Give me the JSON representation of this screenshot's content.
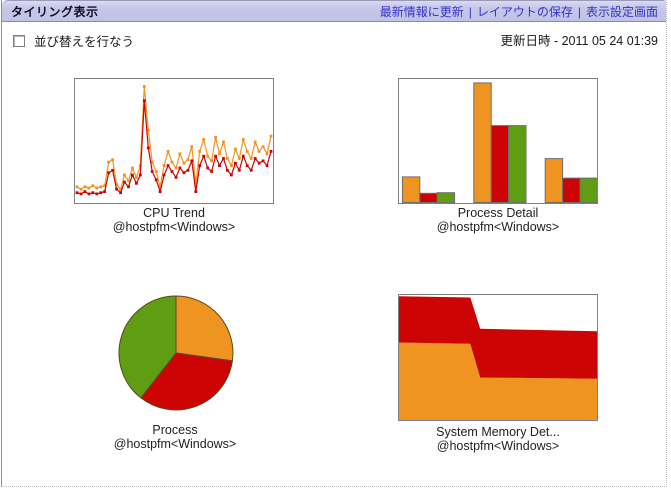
{
  "header": {
    "title": "タイリング表示",
    "links": [
      {
        "label": "最新情報に更新"
      },
      {
        "label": "レイアウトの保存"
      },
      {
        "label": "表示設定画面"
      }
    ],
    "link_separator": "|",
    "link_color": "#3333cc",
    "titlebar_bg": "#c6c6e8"
  },
  "controls": {
    "sort_checkbox_label": "並び替えを行なう",
    "sort_checkbox_checked": false,
    "update_time_text": "更新日時 - 2011 05 24 01:39"
  },
  "colors": {
    "orange": "#ef9421",
    "red": "#cc0404",
    "green": "#5f9d13",
    "chart_border": "#808080"
  },
  "chart_data": [
    {
      "id": "cpu-trend",
      "type": "line",
      "title": "CPU Trend",
      "subtitle": "@hostpfm<Windows>",
      "ylim": [
        0,
        100
      ],
      "grid": false,
      "legend": "none",
      "series": [
        {
          "name": "series-orange",
          "color": "#ef9421",
          "values": [
            12,
            10,
            12,
            11,
            13,
            11,
            12,
            13,
            33,
            35,
            14,
            10,
            22,
            17,
            28,
            20,
            30,
            97,
            60,
            33,
            25,
            12,
            30,
            42,
            33,
            28,
            40,
            32,
            35,
            46,
            14,
            42,
            52,
            38,
            34,
            54,
            40,
            50,
            36,
            30,
            44,
            36,
            52,
            42,
            36,
            50,
            42,
            46,
            40,
            55
          ]
        },
        {
          "name": "series-red",
          "color": "#cc0404",
          "values": [
            7,
            6,
            8,
            6,
            7,
            6,
            7,
            8,
            24,
            26,
            10,
            7,
            16,
            12,
            22,
            15,
            22,
            85,
            45,
            25,
            18,
            8,
            22,
            30,
            25,
            20,
            28,
            24,
            26,
            34,
            8,
            30,
            38,
            28,
            25,
            38,
            30,
            36,
            26,
            22,
            32,
            26,
            38,
            30,
            26,
            36,
            32,
            34,
            30,
            42
          ]
        }
      ]
    },
    {
      "id": "process-detail",
      "type": "bar",
      "title": "Process Detail",
      "subtitle": "@hostpfm<Windows>",
      "categories": [
        "group-1",
        "group-2",
        "group-3"
      ],
      "ylim": [
        0,
        100
      ],
      "grid": false,
      "legend": "none",
      "series": [
        {
          "name": "series-orange",
          "color": "#ef9421",
          "values": [
            21,
            98,
            36
          ]
        },
        {
          "name": "series-red",
          "color": "#cc0404",
          "values": [
            7.5,
            63,
            20
          ]
        },
        {
          "name": "series-green",
          "color": "#5f9d13",
          "values": [
            8,
            63,
            20
          ]
        }
      ]
    },
    {
      "id": "process",
      "type": "pie",
      "title": "Process",
      "subtitle": "@hostpfm<Windows>",
      "start_angle_deg": 0,
      "slices": [
        {
          "name": "slice-orange",
          "color": "#ef9421",
          "angle_deg": 98
        },
        {
          "name": "slice-red",
          "color": "#cc0404",
          "angle_deg": 120
        },
        {
          "name": "slice-green",
          "color": "#5f9d13",
          "angle_deg": 142
        }
      ]
    },
    {
      "id": "system-memory",
      "type": "area",
      "title": "System Memory Det...",
      "subtitle": "@hostpfm<Windows>",
      "ylim": [
        0,
        100
      ],
      "x": [
        0,
        0.36,
        0.41,
        1
      ],
      "series": [
        {
          "name": "area-lower-orange",
          "color": "#ef9421",
          "values": [
            62,
            61,
            34,
            33
          ]
        },
        {
          "name": "area-upper-red",
          "color": "#cc0404",
          "values": [
            99,
            98,
            73,
            71
          ]
        }
      ]
    }
  ]
}
